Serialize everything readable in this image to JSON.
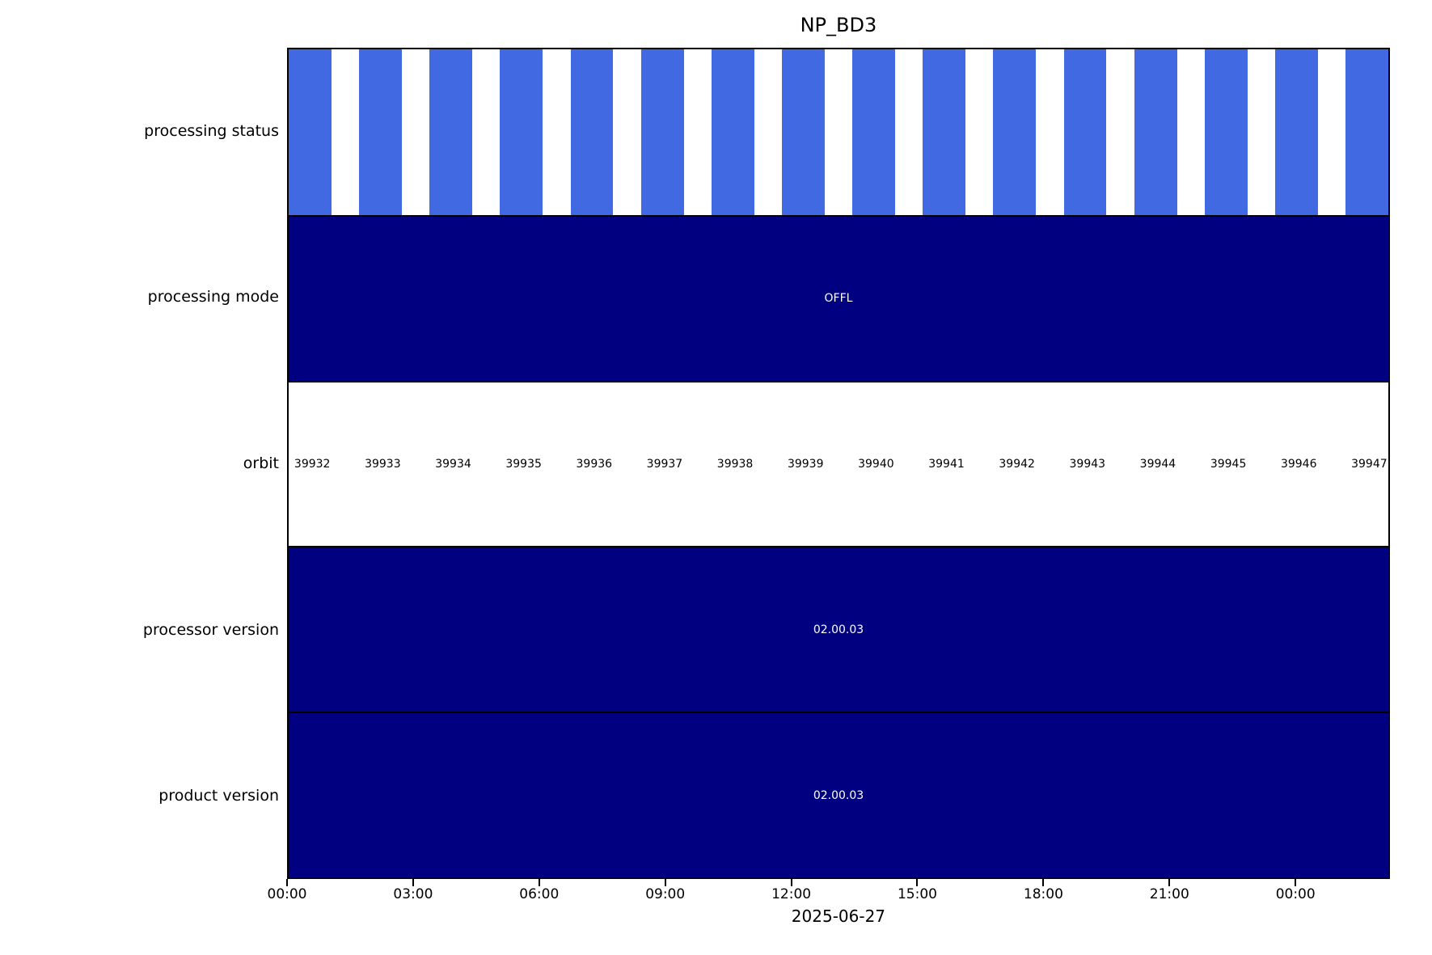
{
  "title": "NP_BD3",
  "x_axis": {
    "date_label": "2025-06-27",
    "ticks": [
      "00:00",
      "03:00",
      "06:00",
      "09:00",
      "12:00",
      "15:00",
      "18:00",
      "21:00",
      "00:00"
    ]
  },
  "colors": {
    "status_blue": "#4169E1",
    "navy": "#000080",
    "band_edge": "#000000",
    "background": "#ffffff",
    "value_text": "#ffffff",
    "orbit_text": "#000000"
  },
  "rows": [
    {
      "label": "processing status",
      "type": "stripes"
    },
    {
      "label": "processing mode",
      "type": "solid",
      "value": "OFFL"
    },
    {
      "label": "orbit",
      "type": "orbit_numbers"
    },
    {
      "label": "processor version",
      "type": "solid",
      "value": "02.00.03"
    },
    {
      "label": "product version",
      "type": "solid",
      "value": "02.00.03"
    }
  ],
  "chart_data": {
    "type": "bar",
    "subtype": "timeline-status-bands",
    "title": "NP_BD3",
    "xlabel": "2025-06-27",
    "x_ticks": [
      "00:00",
      "03:00",
      "06:00",
      "09:00",
      "12:00",
      "15:00",
      "18:00",
      "21:00",
      "00:00"
    ],
    "x_range_hours": [
      0,
      26.27
    ],
    "orbits": [
      39932,
      39933,
      39934,
      39935,
      39936,
      39937,
      39938,
      39939,
      39940,
      39941,
      39942,
      39943,
      39944,
      39945,
      39946,
      39947
    ],
    "orbit_period_hours": 1.683,
    "status_bar_duration_hours": 1.02,
    "series": [
      {
        "name": "processing status",
        "representation": "one blue bar at the start of each orbit",
        "per_orbit": true,
        "color": "#4169E1"
      },
      {
        "name": "processing mode",
        "value": "OFFL",
        "color": "#000080"
      },
      {
        "name": "orbit",
        "values": [
          39932,
          39933,
          39934,
          39935,
          39936,
          39937,
          39938,
          39939,
          39940,
          39941,
          39942,
          39943,
          39944,
          39945,
          39946,
          39947
        ]
      },
      {
        "name": "processor version",
        "value": "02.00.03",
        "color": "#000080"
      },
      {
        "name": "product version",
        "value": "02.00.03",
        "color": "#000080"
      }
    ],
    "legend": "none",
    "grid": false
  },
  "layout_hints": {
    "stripe_period_pct": 6.4077,
    "stripe_width_pct": 3.8856,
    "orbit_label_offset_pct": 0.51,
    "tick_step_pct": 11.4296
  }
}
